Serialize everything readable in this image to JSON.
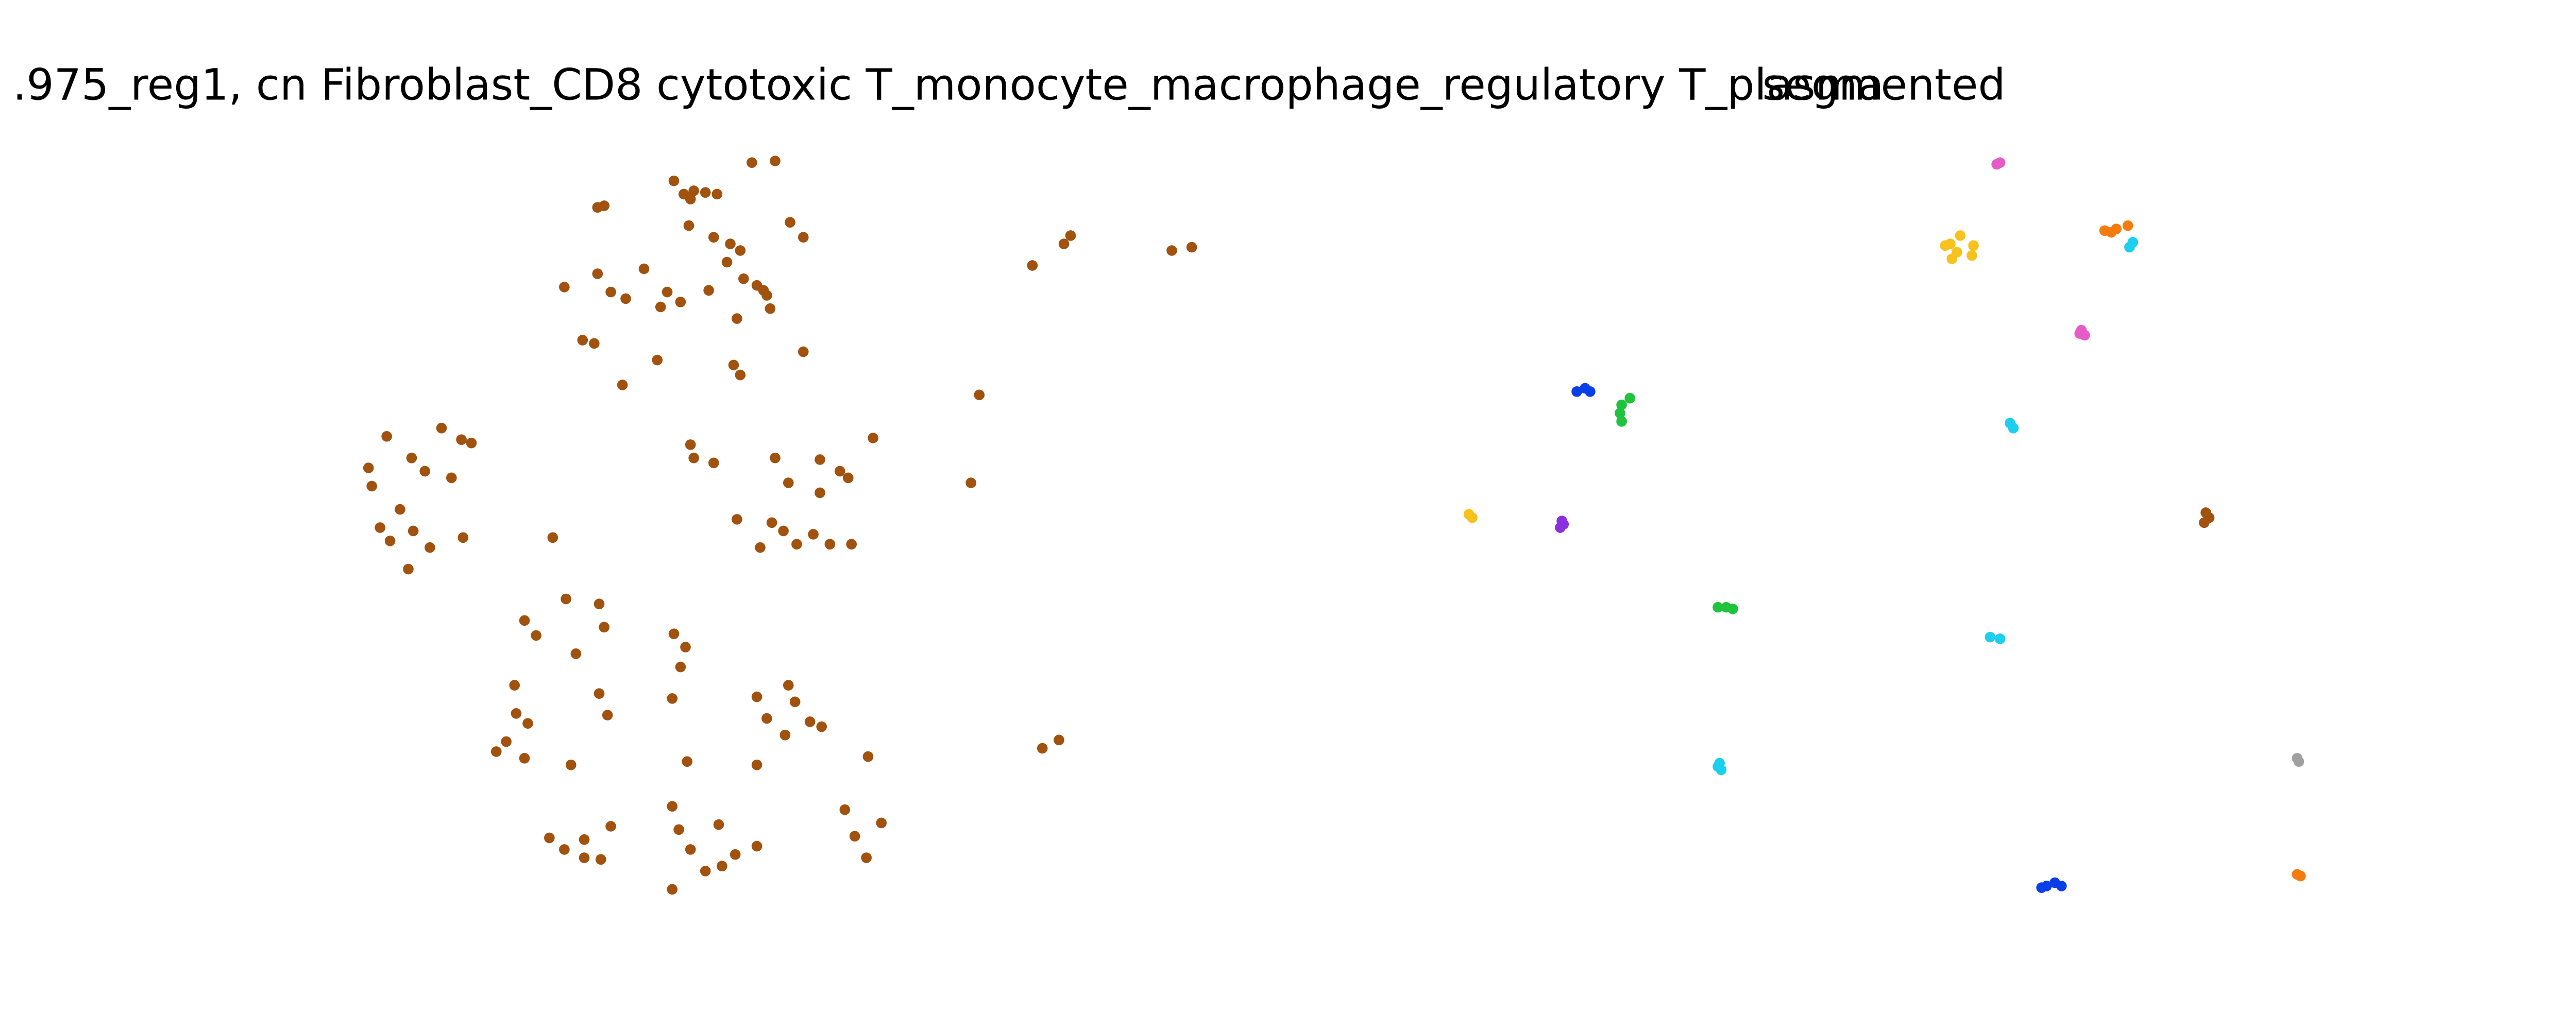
{
  "chart_data": [
    {
      "type": "scatter",
      "title": ".975_reg1, cn Fibroblast_CD8 cytotoxic T_monocyte_macrophage_regulatory T_plasma",
      "xlim": [
        200,
        740
      ],
      "ylim": [
        85,
        540
      ],
      "series": [
        {
          "color": "#a0520e",
          "x": [
            453,
            467,
            406,
            412,
            418,
            425,
            432,
            416,
            360,
            364,
            415,
            476,
            484,
            440,
            430,
            446,
            438,
            448,
            456,
            462,
            464,
            460,
            340,
            360,
            368,
            377,
            388,
            398,
            402,
            410,
            427,
            351,
            358,
            396,
            442,
            446,
            484,
            375,
            444,
            590,
            585,
            622,
            645,
            641,
            706,
            718,
            233,
            266,
            278,
            284,
            222,
            224,
            248,
            256,
            272,
            241,
            229,
            235,
            246,
            259,
            249,
            279,
            333,
            416,
            418,
            430,
            467,
            494,
            506,
            511,
            526,
            475,
            494,
            444,
            465,
            472,
            458,
            480,
            490,
            500,
            513,
            341,
            361,
            364,
            316,
            323,
            347,
            406,
            413,
            410,
            310,
            361,
            366,
            311,
            318,
            305,
            299,
            316,
            344,
            405,
            414,
            456,
            462,
            475,
            479,
            488,
            495,
            473,
            523,
            456,
            405,
            409,
            416,
            425,
            433,
            435,
            443,
            456,
            368,
            352,
            331,
            340,
            352,
            362,
            405,
            509,
            515,
            522,
            531,
            628,
            638
          ],
          "y": [
            532,
            533,
            521,
            513,
            515,
            514,
            513,
            510,
            505,
            506,
            494,
            496,
            487,
            483,
            487,
            479,
            472,
            462,
            458,
            452,
            444,
            455,
            457,
            465,
            454,
            450,
            468,
            445,
            454,
            448,
            455,
            425,
            423,
            413,
            410,
            404,
            418,
            398,
            438,
            392,
            339,
            470,
            488,
            483,
            479,
            481,
            367,
            372,
            365,
            363,
            348,
            337,
            354,
            346,
            342,
            323,
            312,
            304,
            287,
            300,
            310,
            306,
            306,
            362,
            354,
            351,
            354,
            353,
            346,
            342,
            366,
            339,
            333,
            317,
            315,
            310,
            300,
            302,
            308,
            302,
            302,
            269,
            266,
            252,
            256,
            247,
            236,
            248,
            240,
            228,
            217,
            212,
            199,
            200,
            194,
            183,
            177,
            173,
            169,
            209,
            171,
            210,
            197,
            217,
            207,
            195,
            192,
            187,
            174,
            169,
            144,
            130,
            118,
            105,
            133,
            108,
            115,
            120,
            132,
            124,
            125,
            118,
            113,
            112,
            94,
            142,
            126,
            113,
            134,
            179,
            184
          ]
        }
      ]
    },
    {
      "type": "scatter",
      "title": "segmented",
      "xlim": [
        870,
        1400
      ],
      "ylim": [
        85,
        540
      ],
      "series": [
        {
          "color": "#e65bc8",
          "x": [
            1203,
            1205,
            1254,
            1256,
            1253
          ],
          "y": [
            531,
            532,
            431,
            428,
            429
          ]
        },
        {
          "color": "#f7c21d",
          "x": [
            1175,
            1181,
            1172,
            1179,
            1189,
            1176,
            1188,
            885,
            887
          ],
          "y": [
            483,
            488,
            482,
            478,
            482,
            474,
            476,
            320,
            318
          ]
        },
        {
          "color": "#f47b0e",
          "x": [
            1268,
            1275,
            1282,
            1272,
            1384,
            1386
          ],
          "y": [
            491,
            492,
            494,
            490,
            103,
            102
          ]
        },
        {
          "color": "#1ccfee",
          "x": [
            1285,
            1283,
            1211,
            1213,
            1199,
            1205,
            1036,
            1037,
            1035
          ],
          "y": [
            484,
            481,
            375,
            372,
            246,
            245,
            170,
            166,
            168
          ]
        },
        {
          "color": "#0a3ee6",
          "x": [
            950,
            955,
            958,
            1233,
            1238,
            1242,
            1230
          ],
          "y": [
            394,
            396,
            394,
            96,
            98,
            96,
            95
          ]
        },
        {
          "color": "#1fc43c",
          "x": [
            977,
            982,
            976,
            977,
            1035,
            1040,
            1044
          ],
          "y": [
            386,
            390,
            381,
            376,
            264,
            264,
            263
          ]
        },
        {
          "color": "#8b2fe0",
          "x": [
            941,
            940,
            942
          ],
          "y": [
            316,
            312,
            314
          ]
        },
        {
          "color": "#a0520e",
          "x": [
            1329,
            1328,
            1331
          ],
          "y": [
            321,
            315,
            318
          ]
        },
        {
          "color": "#a0a0a0",
          "x": [
            1384,
            1385
          ],
          "y": [
            173,
            171
          ]
        }
      ]
    }
  ]
}
